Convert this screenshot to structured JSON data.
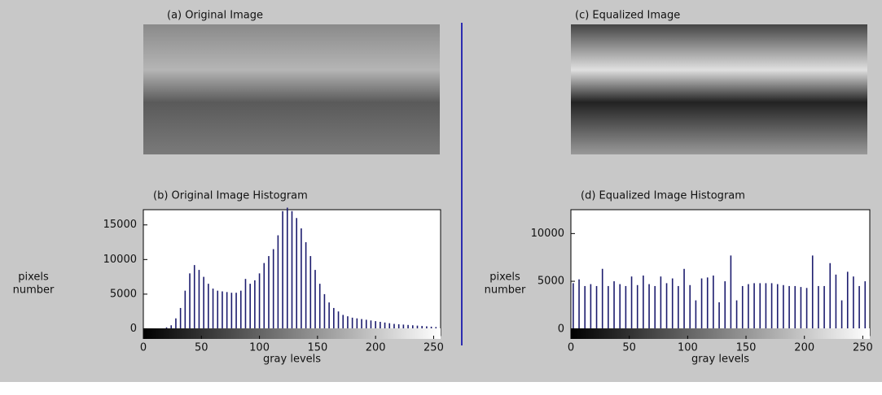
{
  "images": [
    {
      "title": "(a) Original Image"
    },
    {
      "title": "(c) Equalized Image"
    }
  ],
  "chart_data": [
    {
      "type": "bar",
      "title": "(b)  Original Image Histogram",
      "x_label": "gray levels",
      "y_label": [
        "pixels",
        "number"
      ],
      "color": "#1c1c6e",
      "x": [
        20,
        24,
        28,
        32,
        36,
        40,
        44,
        48,
        52,
        56,
        60,
        64,
        68,
        72,
        76,
        80,
        84,
        88,
        92,
        96,
        100,
        104,
        108,
        112,
        116,
        120,
        124,
        128,
        132,
        136,
        140,
        144,
        148,
        152,
        156,
        160,
        164,
        168,
        172,
        176,
        180,
        184,
        188,
        192,
        196,
        200,
        204,
        208,
        212,
        216,
        220,
        224,
        228,
        232,
        236,
        240,
        244,
        248,
        252
      ],
      "values": [
        200,
        500,
        1500,
        3000,
        5500,
        8000,
        9200,
        8500,
        7500,
        6500,
        5800,
        5500,
        5400,
        5300,
        5200,
        5200,
        5500,
        7200,
        6500,
        7000,
        8000,
        9500,
        10500,
        11500,
        13500,
        17000,
        17500,
        17000,
        16000,
        14500,
        12500,
        10500,
        8500,
        6500,
        5000,
        3800,
        3000,
        2500,
        2000,
        1800,
        1600,
        1500,
        1400,
        1300,
        1200,
        1100,
        1000,
        900,
        800,
        700,
        650,
        600,
        550,
        500,
        450,
        400,
        350,
        300,
        250
      ],
      "xlim": [
        0,
        256
      ],
      "xticks": [
        0,
        50,
        100,
        150,
        200,
        250
      ],
      "ylim": [
        -1000,
        17200
      ],
      "yticks": [
        0,
        5000,
        10000,
        15000
      ]
    },
    {
      "type": "bar",
      "title": "(d)  Equalized Image Histogram",
      "x_label": "gray levels",
      "y_label": [
        "pixels",
        "number"
      ],
      "color": "#1c1c6e",
      "x": [
        2,
        7,
        12,
        17,
        22,
        27,
        32,
        37,
        42,
        47,
        52,
        57,
        62,
        67,
        72,
        77,
        82,
        87,
        92,
        97,
        102,
        107,
        112,
        117,
        122,
        127,
        132,
        137,
        142,
        147,
        152,
        157,
        162,
        167,
        172,
        177,
        182,
        187,
        192,
        197,
        202,
        207,
        212,
        217,
        222,
        227,
        232,
        237,
        242,
        247,
        252
      ],
      "values": [
        4800,
        5200,
        4500,
        4700,
        4500,
        6300,
        4500,
        5000,
        4700,
        4500,
        5500,
        4600,
        5600,
        4700,
        4500,
        5500,
        4800,
        5300,
        4500,
        6300,
        4600,
        3000,
        5300,
        5400,
        5600,
        2800,
        5000,
        7700,
        3000,
        4500,
        4700,
        4800,
        4800,
        4800,
        4800,
        4700,
        4600,
        4500,
        4500,
        4400,
        4300,
        7700,
        4500,
        4500,
        6900,
        5700,
        3000,
        6000,
        5500,
        4500,
        5000
      ],
      "xlim": [
        0,
        256
      ],
      "xticks": [
        0,
        50,
        100,
        150,
        200,
        250
      ],
      "ylim": [
        -700,
        12500
      ],
      "yticks": [
        0,
        5000,
        10000
      ]
    }
  ]
}
